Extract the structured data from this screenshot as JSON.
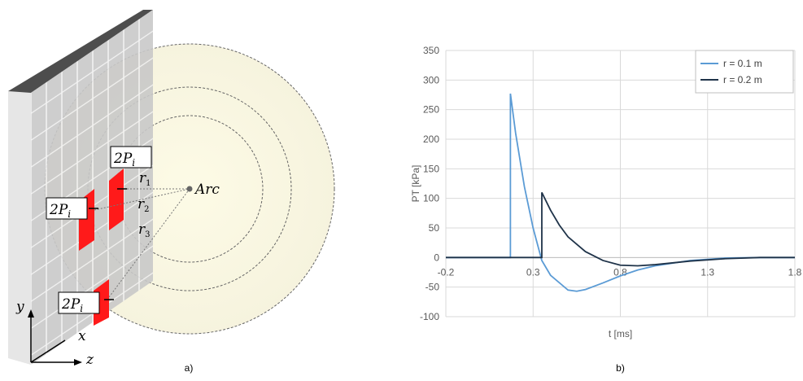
{
  "diagram": {
    "patch_labels": [
      {
        "text": "2P",
        "sub": "i"
      },
      {
        "text": "2P",
        "sub": "i"
      },
      {
        "text": "2P",
        "sub": "i"
      }
    ],
    "radius_labels": [
      {
        "text": "r",
        "sub": "1"
      },
      {
        "text": "r",
        "sub": "2"
      },
      {
        "text": "r",
        "sub": "3"
      }
    ],
    "source_label": "Arc",
    "axis_labels": {
      "y": "y",
      "x": "x",
      "z": "z"
    },
    "panel_label": "a)"
  },
  "chart_data": {
    "type": "line",
    "x_label": "t [ms]",
    "y_label": "PT [kPa]",
    "panel_label": "b)",
    "xlim": [
      -0.2,
      1.8
    ],
    "xticks": [
      -0.2,
      0.3,
      0.8,
      1.3,
      1.8
    ],
    "ylim": [
      -100,
      350
    ],
    "yticks": [
      -100,
      -50,
      0,
      50,
      100,
      150,
      200,
      250,
      300,
      350
    ],
    "grid": true,
    "legend": "top-right",
    "series": [
      {
        "name": "r = 0.1 m",
        "color": "#5b9bd5",
        "x": [
          -0.2,
          0.17,
          0.17,
          0.2,
          0.25,
          0.3,
          0.35,
          0.4,
          0.5,
          0.55,
          0.6,
          0.7,
          0.8,
          0.9,
          1.0,
          1.2,
          1.4,
          1.6,
          1.8
        ],
        "values": [
          0,
          0,
          277,
          210,
          120,
          50,
          -5,
          -30,
          -55,
          -57,
          -54,
          -43,
          -31,
          -21,
          -14,
          -5,
          -1,
          0,
          0
        ]
      },
      {
        "name": "r = 0.2 m",
        "color": "#1f3349",
        "x": [
          -0.2,
          0.35,
          0.35,
          0.4,
          0.45,
          0.5,
          0.6,
          0.7,
          0.8,
          0.9,
          1.0,
          1.2,
          1.4,
          1.6,
          1.8
        ],
        "values": [
          0,
          0,
          110,
          80,
          55,
          35,
          10,
          -5,
          -13,
          -14,
          -12,
          -6,
          -2,
          0,
          0
        ]
      }
    ]
  }
}
